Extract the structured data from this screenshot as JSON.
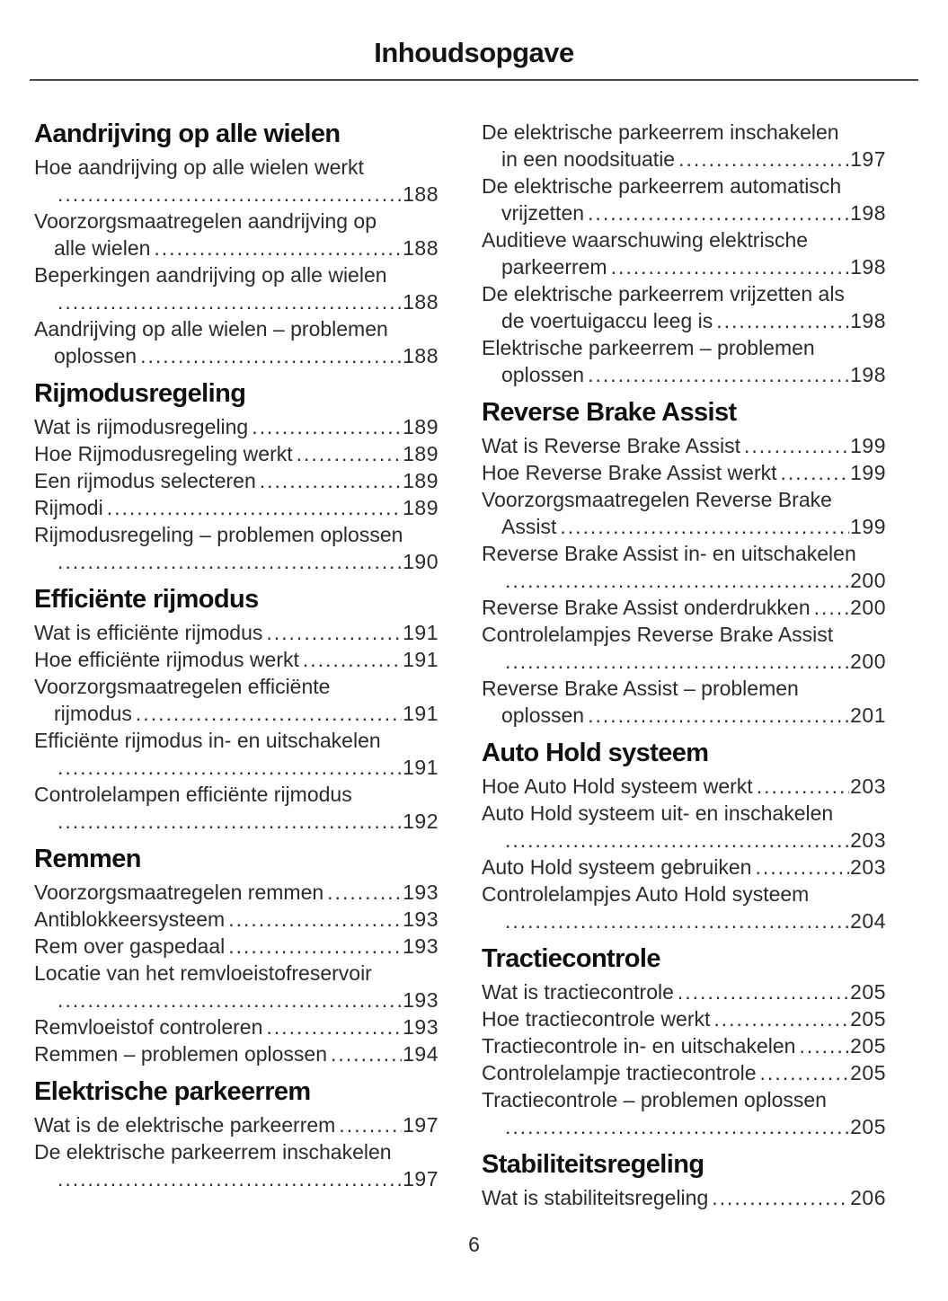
{
  "title": "Inhoudsopgave",
  "footer": {
    "page_number": "6"
  },
  "colors": {
    "background": "#ffffff",
    "text": "#2b2b2b",
    "heading": "#101010",
    "rule": "#4a4a4a"
  },
  "columns": [
    {
      "sections": [
        {
          "heading": "Aandrijving op alle wielen",
          "entries": [
            {
              "lines": [
                {
                  "text": "Hoe aandrijving op alle wielen werkt"
                },
                {
                  "text": "",
                  "indent": true,
                  "dots": true,
                  "page": "188"
                }
              ]
            },
            {
              "lines": [
                {
                  "text": "Voorzorgsmaatregelen aandrijving op"
                },
                {
                  "text": "alle wielen",
                  "indent": true,
                  "dots": true,
                  "page": "188"
                }
              ]
            },
            {
              "lines": [
                {
                  "text": "Beperkingen aandrijving op alle wielen"
                },
                {
                  "text": "",
                  "indent": true,
                  "dots": true,
                  "page": "188"
                }
              ]
            },
            {
              "lines": [
                {
                  "text": "Aandrijving op alle wielen – problemen"
                },
                {
                  "text": "oplossen",
                  "indent": true,
                  "dots": true,
                  "page": "188"
                }
              ]
            }
          ]
        },
        {
          "heading": "Rijmodusregeling",
          "entries": [
            {
              "lines": [
                {
                  "text": "Wat is rijmodusregeling",
                  "dots": true,
                  "page": "189"
                }
              ]
            },
            {
              "lines": [
                {
                  "text": "Hoe Rijmodusregeling werkt",
                  "dots": true,
                  "page": "189"
                }
              ]
            },
            {
              "lines": [
                {
                  "text": "Een rijmodus selecteren",
                  "dots": true,
                  "page": "189"
                }
              ]
            },
            {
              "lines": [
                {
                  "text": "Rijmodi",
                  "dots": true,
                  "page": "189"
                }
              ]
            },
            {
              "lines": [
                {
                  "text": "Rijmodusregeling – problemen oplossen"
                },
                {
                  "text": "",
                  "indent": true,
                  "dots": true,
                  "page": "190"
                }
              ]
            }
          ]
        },
        {
          "heading": "Efficiënte rijmodus",
          "entries": [
            {
              "lines": [
                {
                  "text": "Wat is efficiënte rijmodus",
                  "dots": true,
                  "page": "191"
                }
              ]
            },
            {
              "lines": [
                {
                  "text": "Hoe efficiënte rijmodus werkt",
                  "dots": true,
                  "page": "191"
                }
              ]
            },
            {
              "lines": [
                {
                  "text": "Voorzorgsmaatregelen efficiënte"
                },
                {
                  "text": "rijmodus",
                  "indent": true,
                  "dots": true,
                  "page": "191"
                }
              ]
            },
            {
              "lines": [
                {
                  "text": "Efficiënte rijmodus in- en uitschakelen"
                },
                {
                  "text": "",
                  "indent": true,
                  "dots": true,
                  "page": "191"
                }
              ]
            },
            {
              "lines": [
                {
                  "text": "Controlelampen efficiënte rijmodus"
                },
                {
                  "text": "",
                  "indent": true,
                  "dots": true,
                  "page": "192"
                }
              ]
            }
          ]
        },
        {
          "heading": "Remmen",
          "entries": [
            {
              "lines": [
                {
                  "text": "Voorzorgsmaatregelen remmen",
                  "dots": true,
                  "page": "193"
                }
              ]
            },
            {
              "lines": [
                {
                  "text": "Antiblokkeersysteem",
                  "dots": true,
                  "page": "193"
                }
              ]
            },
            {
              "lines": [
                {
                  "text": "Rem over gaspedaal",
                  "dots": true,
                  "page": "193"
                }
              ]
            },
            {
              "lines": [
                {
                  "text": "Locatie van het remvloeistofreservoir"
                },
                {
                  "text": "",
                  "indent": true,
                  "dots": true,
                  "page": "193"
                }
              ]
            },
            {
              "lines": [
                {
                  "text": "Remvloeistof controleren",
                  "dots": true,
                  "page": "193"
                }
              ]
            },
            {
              "lines": [
                {
                  "text": "Remmen – problemen oplossen",
                  "dots": true,
                  "page": "194"
                }
              ]
            }
          ]
        },
        {
          "heading": "Elektrische parkeerrem",
          "entries": [
            {
              "lines": [
                {
                  "text": "Wat is de elektrische parkeerrem",
                  "dots": true,
                  "page": "197"
                }
              ]
            },
            {
              "lines": [
                {
                  "text": "De elektrische parkeerrem inschakelen"
                },
                {
                  "text": "",
                  "indent": true,
                  "dots": true,
                  "page": "197"
                }
              ]
            }
          ]
        }
      ]
    },
    {
      "sections": [
        {
          "heading": null,
          "entries": [
            {
              "lines": [
                {
                  "text": "De elektrische parkeerrem inschakelen"
                },
                {
                  "text": "in een noodsituatie",
                  "indent": true,
                  "dots": true,
                  "page": "197"
                }
              ]
            },
            {
              "lines": [
                {
                  "text": "De elektrische parkeerrem automatisch"
                },
                {
                  "text": "vrijzetten",
                  "indent": true,
                  "dots": true,
                  "page": "198"
                }
              ]
            },
            {
              "lines": [
                {
                  "text": "Auditieve waarschuwing elektrische"
                },
                {
                  "text": "parkeerrem",
                  "indent": true,
                  "dots": true,
                  "page": "198"
                }
              ]
            },
            {
              "lines": [
                {
                  "text": "De elektrische parkeerrem vrijzetten als"
                },
                {
                  "text": "de voertuigaccu leeg is",
                  "indent": true,
                  "dots": true,
                  "page": "198"
                }
              ]
            },
            {
              "lines": [
                {
                  "text": "Elektrische parkeerrem – problemen"
                },
                {
                  "text": "oplossen",
                  "indent": true,
                  "dots": true,
                  "page": "198"
                }
              ]
            }
          ]
        },
        {
          "heading": "Reverse Brake Assist",
          "entries": [
            {
              "lines": [
                {
                  "text": "Wat is Reverse Brake Assist",
                  "dots": true,
                  "page": "199"
                }
              ]
            },
            {
              "lines": [
                {
                  "text": "Hoe Reverse Brake Assist werkt",
                  "dots": true,
                  "page": "199"
                }
              ]
            },
            {
              "lines": [
                {
                  "text": "Voorzorgsmaatregelen Reverse Brake"
                },
                {
                  "text": "Assist",
                  "indent": true,
                  "dots": true,
                  "page": "199"
                }
              ]
            },
            {
              "lines": [
                {
                  "text": "Reverse Brake Assist in- en uitschakelen"
                },
                {
                  "text": "",
                  "indent": true,
                  "dots": true,
                  "page": "200"
                }
              ]
            },
            {
              "lines": [
                {
                  "text": "Reverse Brake Assist onderdrukken",
                  "dots": true,
                  "page": "200"
                }
              ]
            },
            {
              "lines": [
                {
                  "text": "Controlelampjes Reverse Brake Assist"
                },
                {
                  "text": "",
                  "indent": true,
                  "dots": true,
                  "page": "200"
                }
              ]
            },
            {
              "lines": [
                {
                  "text": "Reverse Brake Assist – problemen"
                },
                {
                  "text": "oplossen",
                  "indent": true,
                  "dots": true,
                  "page": "201"
                }
              ]
            }
          ]
        },
        {
          "heading": "Auto Hold systeem",
          "entries": [
            {
              "lines": [
                {
                  "text": "Hoe Auto Hold systeem werkt",
                  "dots": true,
                  "page": "203"
                }
              ]
            },
            {
              "lines": [
                {
                  "text": "Auto Hold systeem uit- en inschakelen"
                },
                {
                  "text": "",
                  "indent": true,
                  "dots": true,
                  "page": "203"
                }
              ]
            },
            {
              "lines": [
                {
                  "text": "Auto Hold systeem gebruiken",
                  "dots": true,
                  "page": "203"
                }
              ]
            },
            {
              "lines": [
                {
                  "text": "Controlelampjes Auto Hold systeem"
                },
                {
                  "text": "",
                  "indent": true,
                  "dots": true,
                  "page": "204"
                }
              ]
            }
          ]
        },
        {
          "heading": "Tractiecontrole",
          "entries": [
            {
              "lines": [
                {
                  "text": "Wat is tractiecontrole",
                  "dots": true,
                  "page": "205"
                }
              ]
            },
            {
              "lines": [
                {
                  "text": "Hoe tractiecontrole werkt",
                  "dots": true,
                  "page": "205"
                }
              ]
            },
            {
              "lines": [
                {
                  "text": "Tractiecontrole in- en uitschakelen",
                  "dots": true,
                  "page": "205"
                }
              ]
            },
            {
              "lines": [
                {
                  "text": "Controlelampje tractiecontrole",
                  "dots": true,
                  "page": "205"
                }
              ]
            },
            {
              "lines": [
                {
                  "text": "Tractiecontrole – problemen oplossen"
                },
                {
                  "text": "",
                  "indent": true,
                  "dots": true,
                  "page": "205"
                }
              ]
            }
          ]
        },
        {
          "heading": "Stabiliteitsregeling",
          "entries": [
            {
              "lines": [
                {
                  "text": "Wat is stabiliteitsregeling",
                  "dots": true,
                  "page": "206"
                }
              ]
            }
          ]
        }
      ]
    }
  ]
}
